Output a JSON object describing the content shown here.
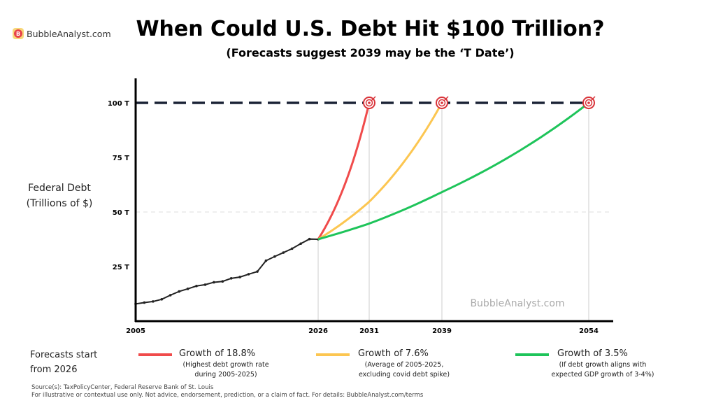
{
  "brand": {
    "logo_letter": "B",
    "name": "BubbleAnalyst.com"
  },
  "title": "When Could U.S. Debt Hit $100 Trillion?",
  "subtitle": "(Forecasts suggest 2039 may be the ‘T Date’)",
  "chart_data": {
    "type": "line",
    "ylabel_line1": "Federal Debt",
    "ylabel_line2": "(Trillions of $)",
    "y_ticks": [
      "25 T",
      "50 T",
      "75 T",
      "100 T"
    ],
    "y_tick_values": [
      25,
      50,
      75,
      100
    ],
    "x_ticks": [
      "2005",
      "2026",
      "2031",
      "2039",
      "2054"
    ],
    "ylim": [
      0,
      110
    ],
    "grid": "dashed line at 50 T",
    "target_line": {
      "value": 100,
      "color": "#1b2336"
    },
    "watermark": "BubbleAnalyst.com",
    "historical": {
      "x": [
        2005,
        2006,
        2007,
        2008,
        2009,
        2010,
        2011,
        2012,
        2013,
        2014,
        2015,
        2016,
        2017,
        2018,
        2019,
        2020,
        2021,
        2022,
        2023,
        2024,
        2025,
        2026
      ],
      "y": [
        7.9,
        8.5,
        9.0,
        10.0,
        11.9,
        13.6,
        14.8,
        16.1,
        16.7,
        17.8,
        18.2,
        19.6,
        20.2,
        21.5,
        22.7,
        27.7,
        29.6,
        31.4,
        33.2,
        35.5,
        37.6,
        39.0
      ],
      "color": "#222222"
    },
    "series": [
      {
        "name": "Growth of 18.8%",
        "note_line1": "(Highest debt growth rate",
        "note_line2": "during 2005-2025)",
        "start": 2026,
        "end": 2031,
        "start_value": 37.5,
        "end_value": 100,
        "color": "#f04b4b"
      },
      {
        "name": "Growth of 7.6%",
        "note_line1": "(Average of 2005-2025,",
        "note_line2": "excluding covid debt spike)",
        "start": 2026,
        "end": 2039,
        "start_value": 37.5,
        "end_value": 100,
        "color": "#fcc651"
      },
      {
        "name": "Growth of 3.5%",
        "note_line1": "(If debt growth aligns with",
        "note_line2": "expected GDP growth of 3-4%)",
        "start": 2026,
        "end": 2054,
        "start_value": 37.5,
        "end_value": 100,
        "color": "#1ec45a"
      }
    ]
  },
  "legend": {
    "intro_line1": "Forecasts start",
    "intro_line2": "from 2026"
  },
  "footer": {
    "source": "Source(s): TaxPolicyCenter, Federal Reserve Bank of St. Louis",
    "disclaimer": "For illustrative or contextual use only. Not advice, endorsement, prediction, or a claim of fact. For details: BubbleAnalyst.com/terms"
  }
}
